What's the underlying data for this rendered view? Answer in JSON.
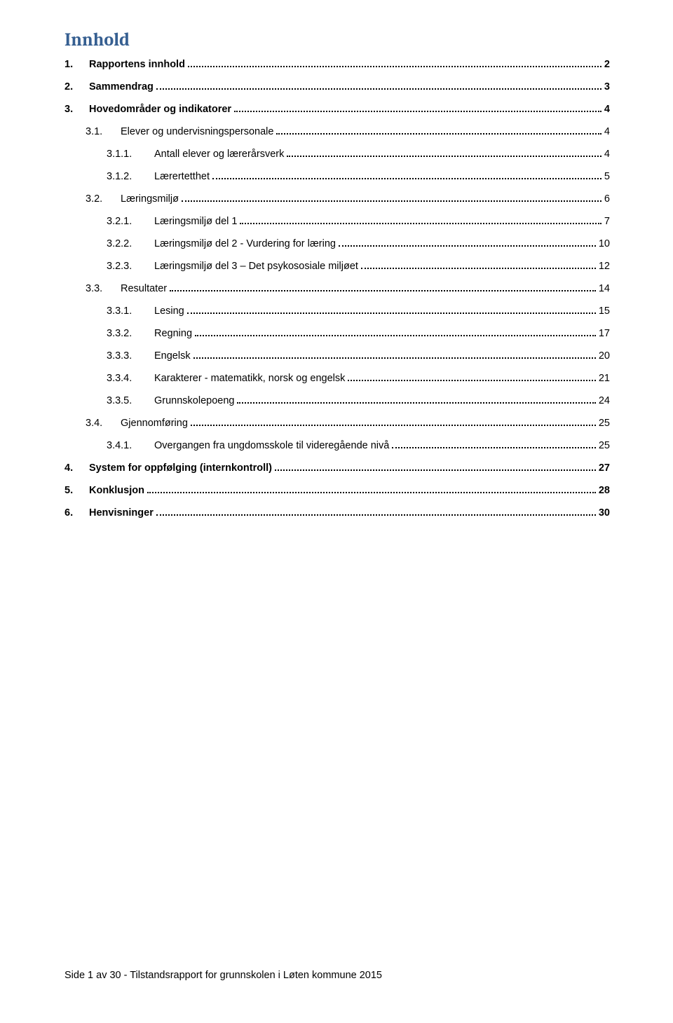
{
  "title": "Innhold",
  "toc": [
    {
      "num": "1.",
      "label": "Rapportens innhold",
      "page": "2",
      "indent": 0,
      "bold": true
    },
    {
      "num": "2.",
      "label": "Sammendrag",
      "page": "3",
      "indent": 0,
      "bold": true
    },
    {
      "num": "3.",
      "label": "Hovedområder og indikatorer",
      "page": "4",
      "indent": 0,
      "bold": true
    },
    {
      "num": "3.1.",
      "label": "Elever og undervisningspersonale",
      "page": "4",
      "indent": 1,
      "bold": false
    },
    {
      "num": "3.1.1.",
      "label": "Antall elever og lærerårsverk",
      "page": "4",
      "indent": 2,
      "bold": false
    },
    {
      "num": "3.1.2.",
      "label": "Lærertetthet",
      "page": "5",
      "indent": 2,
      "bold": false
    },
    {
      "num": "3.2.",
      "label": "Læringsmiljø",
      "page": "6",
      "indent": 1,
      "bold": false
    },
    {
      "num": "3.2.1.",
      "label": "Læringsmiljø del 1",
      "page": "7",
      "indent": 2,
      "bold": false
    },
    {
      "num": "3.2.2.",
      "label": "Læringsmiljø del 2 - Vurdering for læring",
      "page": "10",
      "indent": 2,
      "bold": false
    },
    {
      "num": "3.2.3.",
      "label": "Læringsmiljø del 3 – Det psykososiale miljøet",
      "page": "12",
      "indent": 2,
      "bold": false
    },
    {
      "num": "3.3.",
      "label": "Resultater",
      "page": "14",
      "indent": 1,
      "bold": false
    },
    {
      "num": "3.3.1.",
      "label": "Lesing",
      "page": "15",
      "indent": 2,
      "bold": false
    },
    {
      "num": "3.3.2.",
      "label": "Regning",
      "page": "17",
      "indent": 2,
      "bold": false
    },
    {
      "num": "3.3.3.",
      "label": "Engelsk",
      "page": "20",
      "indent": 2,
      "bold": false
    },
    {
      "num": "3.3.4.",
      "label": "Karakterer - matematikk, norsk og engelsk",
      "page": "21",
      "indent": 2,
      "bold": false
    },
    {
      "num": "3.3.5.",
      "label": "Grunnskolepoeng",
      "page": "24",
      "indent": 2,
      "bold": false
    },
    {
      "num": "3.4.",
      "label": "Gjennomføring",
      "page": "25",
      "indent": 1,
      "bold": false
    },
    {
      "num": "3.4.1.",
      "label": "Overgangen fra ungdomsskole til videregående nivå",
      "page": "25",
      "indent": 2,
      "bold": false
    },
    {
      "num": "4.",
      "label": "System for oppfølging (internkontroll)",
      "page": "27",
      "indent": 0,
      "bold": true
    },
    {
      "num": "5.",
      "label": "Konklusjon",
      "page": "28",
      "indent": 0,
      "bold": true
    },
    {
      "num": "6.",
      "label": "Henvisninger",
      "page": "30",
      "indent": 0,
      "bold": true
    }
  ],
  "footer": "Side 1 av 30 - Tilstandsrapport for grunnskolen i Løten kommune 2015"
}
